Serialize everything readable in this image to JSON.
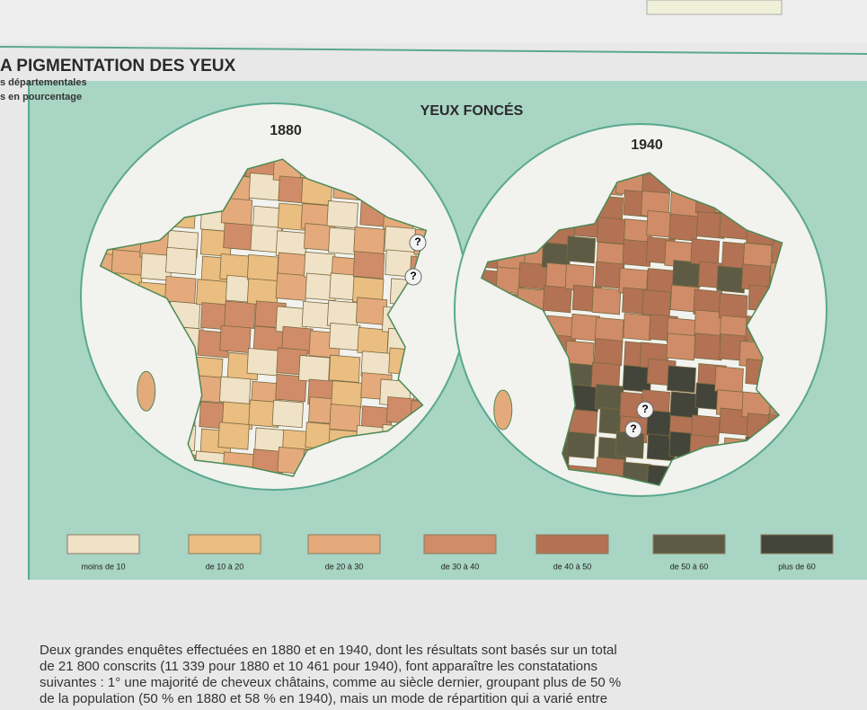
{
  "header": {
    "title": "A PIGMENTATION DES YEUX",
    "subtitle_lines": [
      "s départementales",
      "s en pourcentage"
    ]
  },
  "map_title": "YEUX FONCÉS",
  "maps": [
    {
      "year": "1880"
    },
    {
      "year": "1940"
    }
  ],
  "unknown_marker": "?",
  "legend": [
    {
      "label": "moins de 10",
      "color": "#efe2c6"
    },
    {
      "label": "de 10 à 20",
      "color": "#eabd80"
    },
    {
      "label": "de 20 à 30",
      "color": "#e4aa7c"
    },
    {
      "label": "de 30 à 40",
      "color": "#d08c68"
    },
    {
      "label": "de 40 à 50",
      "color": "#b37254"
    },
    {
      "label": "de 50 à 60",
      "color": "#5e5b45"
    },
    {
      "label": "plus de 60",
      "color": "#43443a"
    }
  ],
  "body_text": [
    "Deux grandes enquêtes effectuées en 1880 et en 1940, dont les résultats sont basés sur un total",
    "de 21 800 conscrits (11 339 pour 1880 et 10 461 pour 1940), font apparaître les constatations",
    "suivantes : 1° une majorité de cheveux châtains, comme au siècle dernier, groupant plus de 50 %",
    "de la population (50 % en 1880 et 58 % en 1940), mais un mode de répartition qui a varié entre"
  ]
}
